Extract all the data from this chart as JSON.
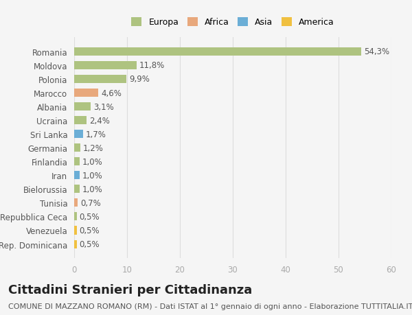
{
  "categories": [
    "Romania",
    "Moldova",
    "Polonia",
    "Marocco",
    "Albania",
    "Ucraina",
    "Sri Lanka",
    "Germania",
    "Finlandia",
    "Iran",
    "Bielorussia",
    "Tunisia",
    "Repubblica Ceca",
    "Venezuela",
    "Rep. Dominicana"
  ],
  "values": [
    54.3,
    11.8,
    9.9,
    4.6,
    3.1,
    2.4,
    1.7,
    1.2,
    1.0,
    1.0,
    1.0,
    0.7,
    0.5,
    0.5,
    0.5
  ],
  "labels": [
    "54,3%",
    "11,8%",
    "9,9%",
    "4,6%",
    "3,1%",
    "2,4%",
    "1,7%",
    "1,2%",
    "1,0%",
    "1,0%",
    "1,0%",
    "0,7%",
    "0,5%",
    "0,5%",
    "0,5%"
  ],
  "colors": [
    "#aec380",
    "#aec380",
    "#aec380",
    "#e8a87c",
    "#aec380",
    "#aec380",
    "#6baed6",
    "#aec380",
    "#aec380",
    "#6baed6",
    "#aec380",
    "#e8a87c",
    "#aec380",
    "#f0c040",
    "#f0c040"
  ],
  "legend_labels": [
    "Europa",
    "Africa",
    "Asia",
    "America"
  ],
  "legend_colors": [
    "#aec380",
    "#e8a87c",
    "#6baed6",
    "#f0c040"
  ],
  "title": "Cittadini Stranieri per Cittadinanza",
  "subtitle": "COMUNE DI MAZZANO ROMANO (RM) - Dati ISTAT al 1° gennaio di ogni anno - Elaborazione TUTTITALIA.IT",
  "xlim": [
    0,
    60
  ],
  "xticks": [
    0,
    10,
    20,
    30,
    40,
    50,
    60
  ],
  "bg_color": "#f5f5f5",
  "bar_height": 0.6,
  "label_fontsize": 8.5,
  "title_fontsize": 13,
  "subtitle_fontsize": 8
}
